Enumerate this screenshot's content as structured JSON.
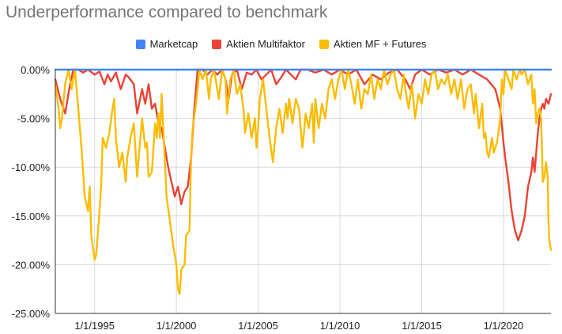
{
  "chart_data": {
    "type": "line",
    "title": "Underperformance compared to benchmark",
    "xlabel": "",
    "ylabel": "",
    "ylim": [
      -25,
      0
    ],
    "y_ticks": [
      "0.00%",
      "-5.00%",
      "-10.00%",
      "-15.00%",
      "-20.00%",
      "-25.00%"
    ],
    "x_ticks": [
      "1/1/1995",
      "1/1/2000",
      "1/1/2005",
      "1/1/2010",
      "1/1/2015",
      "1/1/2020"
    ],
    "grid": true,
    "legend_position": "top",
    "series": [
      {
        "name": "Marketcap",
        "color": "#4285f4",
        "points": [
          [
            1992.6,
            0
          ],
          [
            2022.9,
            0
          ]
        ]
      },
      {
        "name": "Aktien Multifaktor",
        "color": "#ea4335",
        "points": [
          [
            1992.6,
            -1.0
          ],
          [
            1992.9,
            -3.0
          ],
          [
            1993.2,
            -4.5
          ],
          [
            1993.5,
            -1.5
          ],
          [
            1993.7,
            0
          ],
          [
            1994.0,
            0
          ],
          [
            1994.3,
            -0.3
          ],
          [
            1994.6,
            0
          ],
          [
            1995.0,
            -0.5
          ],
          [
            1995.3,
            -0.2
          ],
          [
            1995.6,
            -1.5
          ],
          [
            1995.8,
            -0.5
          ],
          [
            1996.0,
            -1.2
          ],
          [
            1996.3,
            -0.3
          ],
          [
            1996.6,
            -2.0
          ],
          [
            1996.9,
            -0.5
          ],
          [
            1997.1,
            -0.8
          ],
          [
            1997.4,
            -1.5
          ],
          [
            1997.6,
            -4.5
          ],
          [
            1997.9,
            -2.0
          ],
          [
            1998.1,
            -3.5
          ],
          [
            1998.3,
            -1.5
          ],
          [
            1998.5,
            -4.0
          ],
          [
            1998.7,
            -3.5
          ],
          [
            1998.9,
            -5.5
          ],
          [
            1999.1,
            -6.0
          ],
          [
            1999.3,
            -8.0
          ],
          [
            1999.5,
            -10.0
          ],
          [
            1999.7,
            -11.5
          ],
          [
            1999.9,
            -13.0
          ],
          [
            2000.1,
            -12.0
          ],
          [
            2000.3,
            -13.8
          ],
          [
            2000.5,
            -12.5
          ],
          [
            2000.7,
            -12.0
          ],
          [
            2000.9,
            -9.0
          ],
          [
            2001.1,
            -4.0
          ],
          [
            2001.3,
            0
          ],
          [
            2001.6,
            0
          ],
          [
            2001.9,
            -0.5
          ],
          [
            2002.2,
            0
          ],
          [
            2002.5,
            -0.5
          ],
          [
            2002.8,
            0
          ],
          [
            2003.0,
            -1.0
          ],
          [
            2003.2,
            -3.0
          ],
          [
            2003.4,
            -0.5
          ],
          [
            2003.7,
            0
          ],
          [
            2004.0,
            -2.0
          ],
          [
            2004.3,
            -0.3
          ],
          [
            2004.6,
            -0.5
          ],
          [
            2004.9,
            0
          ],
          [
            2005.2,
            -1.0
          ],
          [
            2005.5,
            -0.5
          ],
          [
            2005.8,
            0
          ],
          [
            2006.1,
            -1.5
          ],
          [
            2006.4,
            -0.8
          ],
          [
            2006.7,
            0
          ],
          [
            2007.0,
            -0.5
          ],
          [
            2007.3,
            -1.0
          ],
          [
            2007.6,
            0
          ],
          [
            2008.0,
            0
          ],
          [
            2008.5,
            -0.3
          ],
          [
            2009.0,
            0
          ],
          [
            2009.5,
            -0.5
          ],
          [
            2010.0,
            0
          ],
          [
            2010.5,
            -0.5
          ],
          [
            2011.0,
            0
          ],
          [
            2011.5,
            -1.5
          ],
          [
            2012.0,
            -0.5
          ],
          [
            2012.5,
            -1.0
          ],
          [
            2013.0,
            -0.3
          ],
          [
            2013.5,
            0
          ],
          [
            2014.0,
            -1.0
          ],
          [
            2014.3,
            -2.0
          ],
          [
            2014.6,
            -0.5
          ],
          [
            2015.0,
            0
          ],
          [
            2015.5,
            -0.5
          ],
          [
            2016.0,
            0
          ],
          [
            2016.5,
            -0.3
          ],
          [
            2017.0,
            0
          ],
          [
            2017.5,
            -0.5
          ],
          [
            2018.0,
            0
          ],
          [
            2018.5,
            -0.5
          ],
          [
            2019.0,
            -1.0
          ],
          [
            2019.5,
            -2.0
          ],
          [
            2019.8,
            -4.0
          ],
          [
            2020.0,
            -7.5
          ],
          [
            2020.1,
            -9.0
          ],
          [
            2020.3,
            -11.5
          ],
          [
            2020.5,
            -14.5
          ],
          [
            2020.7,
            -16.5
          ],
          [
            2020.9,
            -17.5
          ],
          [
            2021.1,
            -16.5
          ],
          [
            2021.3,
            -15.0
          ],
          [
            2021.5,
            -12.0
          ],
          [
            2021.7,
            -10.5
          ],
          [
            2021.8,
            -9.0
          ],
          [
            2021.9,
            -10.5
          ],
          [
            2022.0,
            -8.5
          ],
          [
            2022.1,
            -6.5
          ],
          [
            2022.2,
            -5.0
          ],
          [
            2022.3,
            -4.0
          ],
          [
            2022.4,
            -3.5
          ],
          [
            2022.5,
            -4.0
          ],
          [
            2022.6,
            -3.0
          ],
          [
            2022.75,
            -3.5
          ],
          [
            2022.9,
            -2.5
          ]
        ]
      },
      {
        "name": "Aktien MF + Futures",
        "color": "#fbbc04",
        "points": [
          [
            1992.6,
            -1.5
          ],
          [
            1992.8,
            -4.0
          ],
          [
            1992.9,
            -6.0
          ],
          [
            1993.0,
            -5.0
          ],
          [
            1993.2,
            -1.5
          ],
          [
            1993.4,
            0
          ],
          [
            1993.6,
            -2.0
          ],
          [
            1993.8,
            0
          ],
          [
            1994.0,
            -4.0
          ],
          [
            1994.2,
            -8.0
          ],
          [
            1994.4,
            -13.0
          ],
          [
            1994.6,
            -14.5
          ],
          [
            1994.7,
            -12.0
          ],
          [
            1994.8,
            -17.0
          ],
          [
            1995.0,
            -19.5
          ],
          [
            1995.1,
            -19.0
          ],
          [
            1995.3,
            -14.5
          ],
          [
            1995.4,
            -12.0
          ],
          [
            1995.5,
            -7.0
          ],
          [
            1995.7,
            -8.0
          ],
          [
            1995.9,
            -6.5
          ],
          [
            1996.1,
            -4.0
          ],
          [
            1996.2,
            -3.0
          ],
          [
            1996.3,
            -7.0
          ],
          [
            1996.5,
            -10.0
          ],
          [
            1996.7,
            -8.5
          ],
          [
            1996.9,
            -11.5
          ],
          [
            1997.0,
            -9.0
          ],
          [
            1997.2,
            -7.0
          ],
          [
            1997.4,
            -5.5
          ],
          [
            1997.6,
            -11.0
          ],
          [
            1997.8,
            -7.0
          ],
          [
            1997.9,
            -5.0
          ],
          [
            1998.1,
            -8.0
          ],
          [
            1998.2,
            -7.5
          ],
          [
            1998.3,
            -11.0
          ],
          [
            1998.5,
            -10.5
          ],
          [
            1998.7,
            -5.5
          ],
          [
            1998.8,
            -7.0
          ],
          [
            1998.9,
            -4.5
          ],
          [
            1999.0,
            -7.0
          ],
          [
            1999.1,
            -2.5
          ],
          [
            1999.3,
            -9.5
          ],
          [
            1999.4,
            -13.0
          ],
          [
            1999.6,
            -15.5
          ],
          [
            1999.8,
            -18.0
          ],
          [
            2000.0,
            -20.0
          ],
          [
            2000.1,
            -22.5
          ],
          [
            2000.2,
            -23.0
          ],
          [
            2000.3,
            -20.5
          ],
          [
            2000.5,
            -20.0
          ],
          [
            2000.6,
            -17.0
          ],
          [
            2000.8,
            -16.5
          ],
          [
            2000.9,
            -9.0
          ],
          [
            2001.0,
            -6.0
          ],
          [
            2001.2,
            -3.5
          ],
          [
            2001.3,
            -2.0
          ],
          [
            2001.4,
            0
          ],
          [
            2001.6,
            -1.0
          ],
          [
            2001.8,
            0
          ],
          [
            2002.0,
            -3.0
          ],
          [
            2002.1,
            -1.0
          ],
          [
            2002.3,
            0
          ],
          [
            2002.5,
            -2.0
          ],
          [
            2002.6,
            -3.0
          ],
          [
            2002.8,
            0
          ],
          [
            2003.0,
            -1.0
          ],
          [
            2003.1,
            -4.5
          ],
          [
            2003.3,
            -1.0
          ],
          [
            2003.5,
            0
          ],
          [
            2003.7,
            -2.5
          ],
          [
            2003.9,
            -1.5
          ],
          [
            2004.1,
            -4.0
          ],
          [
            2004.2,
            -6.5
          ],
          [
            2004.4,
            -4.5
          ],
          [
            2004.6,
            -7.0
          ],
          [
            2004.8,
            -5.0
          ],
          [
            2004.9,
            -8.0
          ],
          [
            2005.0,
            -6.0
          ],
          [
            2005.1,
            -3.0
          ],
          [
            2005.3,
            -1.0
          ],
          [
            2005.5,
            -4.0
          ],
          [
            2005.7,
            -7.0
          ],
          [
            2005.9,
            -9.5
          ],
          [
            2006.1,
            -6.0
          ],
          [
            2006.3,
            -4.0
          ],
          [
            2006.5,
            -6.5
          ],
          [
            2006.7,
            -3.5
          ],
          [
            2006.8,
            -5.0
          ],
          [
            2006.9,
            -3.0
          ],
          [
            2007.1,
            -5.5
          ],
          [
            2007.3,
            -3.0
          ],
          [
            2007.5,
            -4.0
          ],
          [
            2007.7,
            -8.0
          ],
          [
            2007.8,
            -6.5
          ],
          [
            2007.9,
            -4.5
          ],
          [
            2008.1,
            -6.0
          ],
          [
            2008.3,
            -3.5
          ],
          [
            2008.4,
            -7.5
          ],
          [
            2008.5,
            -3.0
          ],
          [
            2008.7,
            -6.0
          ],
          [
            2008.9,
            -3.5
          ],
          [
            2009.1,
            -5.0
          ],
          [
            2009.3,
            -2.0
          ],
          [
            2009.5,
            -1.0
          ],
          [
            2009.7,
            -3.0
          ],
          [
            2009.9,
            -1.0
          ],
          [
            2010.1,
            0
          ],
          [
            2010.3,
            -2.0
          ],
          [
            2010.5,
            0
          ],
          [
            2010.7,
            -1.5
          ],
          [
            2010.9,
            -3.5
          ],
          [
            2011.1,
            -1.0
          ],
          [
            2011.3,
            -4.0
          ],
          [
            2011.5,
            -2.0
          ],
          [
            2011.7,
            -2.5
          ],
          [
            2011.9,
            -0.5
          ],
          [
            2012.1,
            -3.0
          ],
          [
            2012.3,
            -1.0
          ],
          [
            2012.5,
            -2.0
          ],
          [
            2012.7,
            0
          ],
          [
            2012.9,
            -1.5
          ],
          [
            2013.1,
            -0.5
          ],
          [
            2013.3,
            0
          ],
          [
            2013.5,
            -2.0
          ],
          [
            2013.7,
            -3.0
          ],
          [
            2013.9,
            -0.5
          ],
          [
            2014.0,
            -2.0
          ],
          [
            2014.2,
            -4.0
          ],
          [
            2014.4,
            -1.5
          ],
          [
            2014.6,
            -5.0
          ],
          [
            2014.8,
            -2.5
          ],
          [
            2015.0,
            -3.5
          ],
          [
            2015.2,
            -1.0
          ],
          [
            2015.4,
            -2.5
          ],
          [
            2015.6,
            -0.5
          ],
          [
            2015.8,
            0
          ],
          [
            2016.0,
            -2.0
          ],
          [
            2016.2,
            -1.0
          ],
          [
            2016.4,
            -1.5
          ],
          [
            2016.6,
            -0.5
          ],
          [
            2016.8,
            -2.5
          ],
          [
            2017.0,
            -1.0
          ],
          [
            2017.2,
            -3.0
          ],
          [
            2017.4,
            -1.0
          ],
          [
            2017.6,
            -4.0
          ],
          [
            2017.8,
            -2.0
          ],
          [
            2018.0,
            -1.5
          ],
          [
            2018.2,
            -4.5
          ],
          [
            2018.3,
            -2.5
          ],
          [
            2018.5,
            -6.0
          ],
          [
            2018.7,
            -3.5
          ],
          [
            2018.8,
            -7.0
          ],
          [
            2018.9,
            -6.5
          ],
          [
            2019.0,
            -8.5
          ],
          [
            2019.1,
            -9.0
          ],
          [
            2019.3,
            -7.0
          ],
          [
            2019.4,
            -8.5
          ],
          [
            2019.6,
            -7.5
          ],
          [
            2019.8,
            -5.0
          ],
          [
            2019.9,
            -1.0
          ],
          [
            2020.0,
            -2.5
          ],
          [
            2020.1,
            0
          ],
          [
            2020.3,
            -1.0
          ],
          [
            2020.5,
            -2.0
          ],
          [
            2020.6,
            0
          ],
          [
            2020.8,
            -1.0
          ],
          [
            2021.0,
            0
          ],
          [
            2021.1,
            -0.5
          ],
          [
            2021.3,
            0
          ],
          [
            2021.5,
            -1.5
          ],
          [
            2021.7,
            -0.5
          ],
          [
            2021.8,
            -3.5
          ],
          [
            2021.9,
            -2.0
          ],
          [
            2022.0,
            -5.5
          ],
          [
            2022.1,
            -4.5
          ],
          [
            2022.2,
            -4.0
          ],
          [
            2022.3,
            -5.0
          ],
          [
            2022.35,
            -8.0
          ],
          [
            2022.4,
            -11.5
          ],
          [
            2022.5,
            -11.0
          ],
          [
            2022.6,
            -9.5
          ],
          [
            2022.7,
            -11.0
          ],
          [
            2022.75,
            -15.5
          ],
          [
            2022.8,
            -17.5
          ],
          [
            2022.9,
            -18.5
          ]
        ]
      }
    ]
  }
}
